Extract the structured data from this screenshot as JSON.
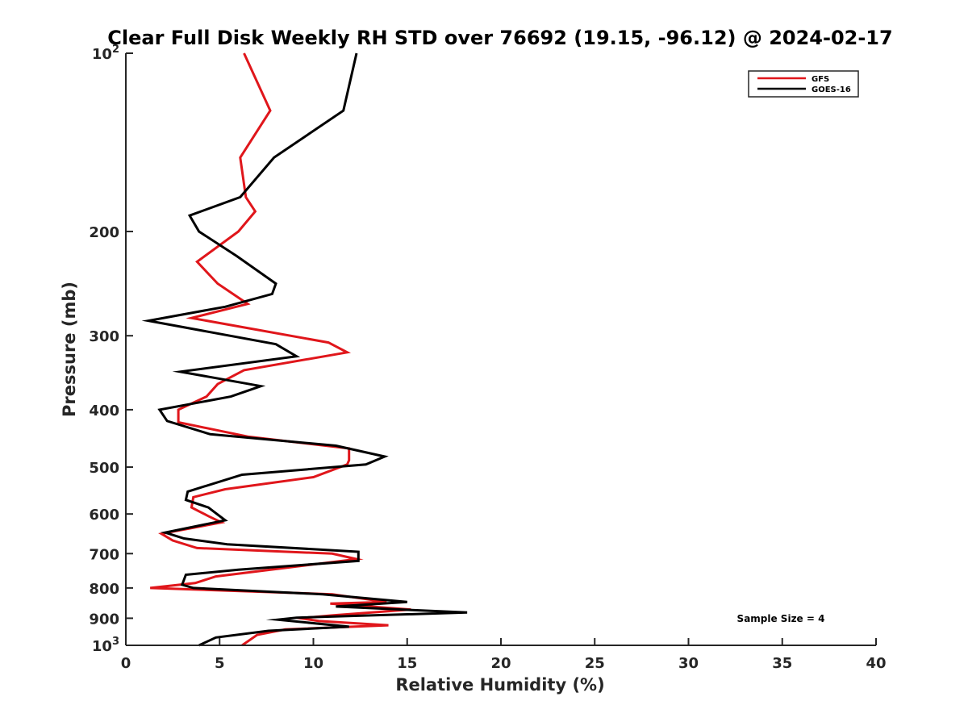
{
  "chart_data": {
    "type": "line",
    "title": "Clear Full Disk Weekly RH STD over 76692 (19.15, -96.12) @ 2024-02-17",
    "xlabel": "Relative Humidity (%)",
    "ylabel": "Pressure (mb)",
    "xlim": [
      0,
      40
    ],
    "ylim": [
      100,
      1000
    ],
    "y_scale": "log",
    "y_reversed": true,
    "grid": false,
    "legend_position": "top-right",
    "x_ticks": [
      0,
      5,
      10,
      15,
      20,
      25,
      30,
      35,
      40
    ],
    "x_tick_labels": [
      "0",
      "5",
      "10",
      "15",
      "20",
      "25",
      "30",
      "35",
      "40"
    ],
    "y_ticks": [
      100,
      200,
      300,
      400,
      500,
      600,
      700,
      800,
      900,
      1000
    ],
    "y_tick_labels": [
      {
        "base": "10",
        "exp": "2"
      },
      {
        "base": "200",
        "exp": ""
      },
      {
        "base": "300",
        "exp": ""
      },
      {
        "base": "400",
        "exp": ""
      },
      {
        "base": "500",
        "exp": ""
      },
      {
        "base": "600",
        "exp": ""
      },
      {
        "base": "700",
        "exp": ""
      },
      {
        "base": "800",
        "exp": ""
      },
      {
        "base": "900",
        "exp": ""
      },
      {
        "base": "10",
        "exp": "3"
      }
    ],
    "series": [
      {
        "name": "GFS",
        "color": "#e0161b",
        "points": [
          [
            6.3,
            100
          ],
          [
            7.7,
            125
          ],
          [
            6.1,
            150
          ],
          [
            6.4,
            175
          ],
          [
            6.9,
            185
          ],
          [
            6.0,
            200
          ],
          [
            3.8,
            225
          ],
          [
            4.9,
            245
          ],
          [
            6.5,
            265
          ],
          [
            3.5,
            280
          ],
          [
            10.8,
            308
          ],
          [
            11.8,
            320
          ],
          [
            6.3,
            343
          ],
          [
            4.9,
            362
          ],
          [
            4.3,
            380
          ],
          [
            2.8,
            400
          ],
          [
            2.8,
            420
          ],
          [
            6.5,
            444
          ],
          [
            11.9,
            465
          ],
          [
            11.9,
            487
          ],
          [
            11.8,
            495
          ],
          [
            10.0,
            520
          ],
          [
            5.3,
            545
          ],
          [
            3.6,
            562
          ],
          [
            3.5,
            585
          ],
          [
            4.4,
            605
          ],
          [
            5.1,
            620
          ],
          [
            1.9,
            648
          ],
          [
            2.5,
            665
          ],
          [
            3.8,
            685
          ],
          [
            11.0,
            700
          ],
          [
            12.3,
            715
          ],
          [
            8.5,
            740
          ],
          [
            4.8,
            765
          ],
          [
            3.7,
            785
          ],
          [
            1.3,
            800
          ],
          [
            11.0,
            820
          ],
          [
            13.9,
            845
          ],
          [
            10.9,
            850
          ],
          [
            15.2,
            870
          ],
          [
            11.0,
            890
          ],
          [
            9.3,
            900
          ],
          [
            10.3,
            910
          ],
          [
            14.0,
            925
          ],
          [
            8.5,
            940
          ],
          [
            7.0,
            960
          ],
          [
            6.2,
            1000
          ]
        ]
      },
      {
        "name": "GOES-16",
        "color": "#000000",
        "points": [
          [
            12.3,
            100
          ],
          [
            11.6,
            125
          ],
          [
            7.9,
            150
          ],
          [
            6.1,
            175
          ],
          [
            3.4,
            188
          ],
          [
            3.9,
            200
          ],
          [
            5.9,
            220
          ],
          [
            8.0,
            245
          ],
          [
            7.8,
            255
          ],
          [
            5.3,
            268
          ],
          [
            1.2,
            283
          ],
          [
            8.0,
            310
          ],
          [
            9.1,
            325
          ],
          [
            2.9,
            345
          ],
          [
            7.2,
            365
          ],
          [
            5.6,
            380
          ],
          [
            1.8,
            400
          ],
          [
            2.2,
            418
          ],
          [
            4.5,
            440
          ],
          [
            11.2,
            460
          ],
          [
            13.8,
            480
          ],
          [
            12.8,
            495
          ],
          [
            6.2,
            515
          ],
          [
            3.3,
            550
          ],
          [
            3.2,
            568
          ],
          [
            4.4,
            585
          ],
          [
            5.3,
            615
          ],
          [
            2.1,
            645
          ],
          [
            3.1,
            660
          ],
          [
            5.4,
            675
          ],
          [
            12.4,
            695
          ],
          [
            12.4,
            720
          ],
          [
            6.0,
            745
          ],
          [
            3.2,
            760
          ],
          [
            3.0,
            790
          ],
          [
            3.6,
            800
          ],
          [
            10.5,
            820
          ],
          [
            15.0,
            845
          ],
          [
            11.2,
            860
          ],
          [
            18.2,
            880
          ],
          [
            9.1,
            898
          ],
          [
            8.1,
            905
          ],
          [
            11.9,
            930
          ],
          [
            7.6,
            945
          ],
          [
            4.8,
            970
          ],
          [
            3.9,
            1000
          ]
        ]
      }
    ],
    "annotations": [
      {
        "text": "Sample Size = 4"
      }
    ]
  }
}
